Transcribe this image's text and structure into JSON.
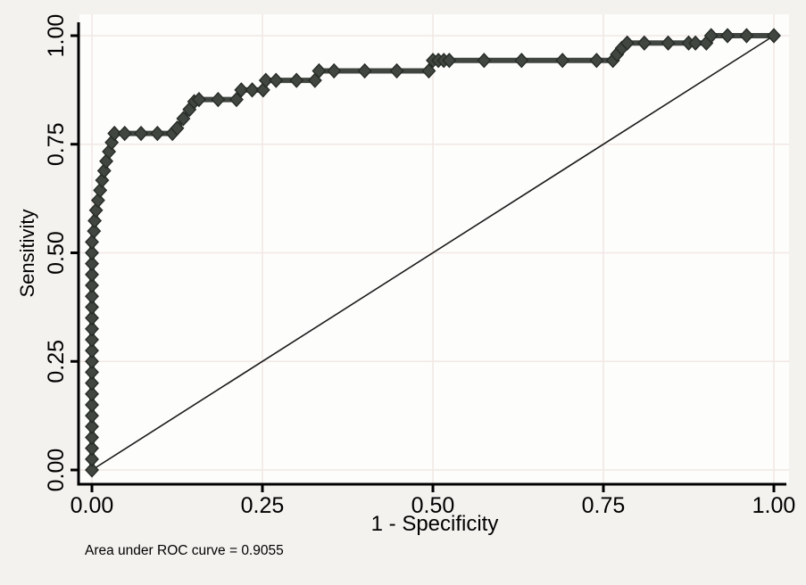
{
  "chart_data": {
    "type": "line",
    "title": "",
    "xlabel": "1 - Specificity",
    "ylabel": "Sensitivity",
    "xlim": [
      0,
      1
    ],
    "ylim": [
      0,
      1
    ],
    "x_tick_values": [
      0,
      0.25,
      0.5,
      0.75,
      1
    ],
    "y_tick_values": [
      0,
      0.25,
      0.5,
      0.75,
      1
    ],
    "x_tick_labels": [
      "0.00",
      "0.25",
      "0.50",
      "0.75",
      "1.00"
    ],
    "y_tick_labels": [
      "0.00",
      "0.25",
      "0.50",
      "0.75",
      "1.00"
    ],
    "grid": true,
    "legend_position": "none",
    "annotation": "Area under ROC curve = 0.9055",
    "auc_value": 0.9055,
    "series": [
      {
        "name": "ROC curve",
        "marker": "diamond",
        "color": "#414641",
        "points": [
          [
            0,
            0
          ],
          [
            0,
            0.025
          ],
          [
            0,
            0.05
          ],
          [
            0,
            0.075
          ],
          [
            0,
            0.1
          ],
          [
            0,
            0.125
          ],
          [
            0,
            0.15
          ],
          [
            0,
            0.175
          ],
          [
            0,
            0.2
          ],
          [
            0,
            0.225
          ],
          [
            0,
            0.25
          ],
          [
            0,
            0.275
          ],
          [
            0,
            0.3
          ],
          [
            0,
            0.325
          ],
          [
            0,
            0.35
          ],
          [
            0,
            0.375
          ],
          [
            0,
            0.4
          ],
          [
            0,
            0.425
          ],
          [
            0,
            0.45
          ],
          [
            0,
            0.475
          ],
          [
            0,
            0.5
          ],
          [
            0,
            0.525
          ],
          [
            0.003,
            0.55
          ],
          [
            0.004,
            0.574
          ],
          [
            0.006,
            0.598
          ],
          [
            0.009,
            0.621
          ],
          [
            0.012,
            0.644
          ],
          [
            0.015,
            0.667
          ],
          [
            0.018,
            0.689
          ],
          [
            0.021,
            0.711
          ],
          [
            0.025,
            0.733
          ],
          [
            0.029,
            0.754
          ],
          [
            0.033,
            0.775
          ],
          [
            0.048,
            0.775
          ],
          [
            0.072,
            0.775
          ],
          [
            0.096,
            0.775
          ],
          [
            0.118,
            0.775
          ],
          [
            0.125,
            0.787
          ],
          [
            0.134,
            0.809
          ],
          [
            0.143,
            0.83
          ],
          [
            0.15,
            0.848
          ],
          [
            0.157,
            0.853
          ],
          [
            0.185,
            0.853
          ],
          [
            0.212,
            0.853
          ],
          [
            0.219,
            0.875
          ],
          [
            0.235,
            0.875
          ],
          [
            0.251,
            0.875
          ],
          [
            0.255,
            0.897
          ],
          [
            0.27,
            0.897
          ],
          [
            0.3,
            0.897
          ],
          [
            0.327,
            0.897
          ],
          [
            0.333,
            0.919
          ],
          [
            0.355,
            0.919
          ],
          [
            0.4,
            0.919
          ],
          [
            0.447,
            0.919
          ],
          [
            0.494,
            0.919
          ],
          [
            0.5,
            0.943
          ],
          [
            0.508,
            0.943
          ],
          [
            0.516,
            0.943
          ],
          [
            0.524,
            0.943
          ],
          [
            0.575,
            0.943
          ],
          [
            0.63,
            0.943
          ],
          [
            0.69,
            0.943
          ],
          [
            0.74,
            0.943
          ],
          [
            0.764,
            0.943
          ],
          [
            0.77,
            0.957
          ],
          [
            0.777,
            0.971
          ],
          [
            0.785,
            0.983
          ],
          [
            0.81,
            0.983
          ],
          [
            0.845,
            0.983
          ],
          [
            0.875,
            0.983
          ],
          [
            0.885,
            0.983
          ],
          [
            0.901,
            0.983
          ],
          [
            0.908,
            1
          ],
          [
            0.932,
            1
          ],
          [
            0.96,
            1
          ],
          [
            1,
            1
          ]
        ]
      },
      {
        "name": "Reference line",
        "marker": "none",
        "color": "#1a1a1a",
        "points": [
          [
            0,
            0
          ],
          [
            1,
            1
          ]
        ]
      }
    ]
  },
  "style": {
    "background_outer": "#f4f2ef",
    "background_plot": "#fdfdfc",
    "grid_color": "#f2e8e4",
    "axis_color": "#000000",
    "curve_color": "#414641",
    "marker_edge_color": "#262b26",
    "diagonal_color": "#1a1a1a",
    "text_color": "#000000"
  }
}
